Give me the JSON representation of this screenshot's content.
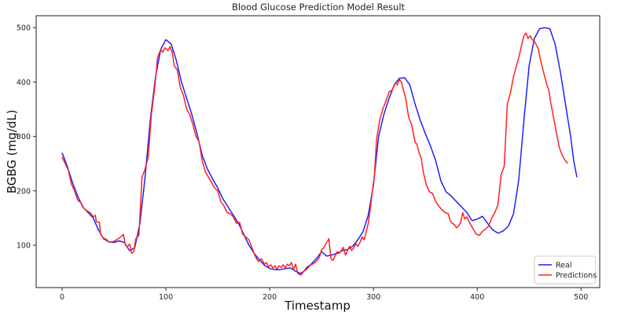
{
  "chart_data": {
    "type": "line",
    "title": "Blood Glucose Prediction Model Result",
    "xlabel": "Timestamp",
    "ylabel": "BGBG (mg/dL)",
    "xlim": [
      -25,
      518
    ],
    "ylim": [
      22,
      522
    ],
    "xticks": [
      0,
      100,
      200,
      300,
      400,
      500
    ],
    "yticks": [
      100,
      200,
      300,
      400,
      500
    ],
    "grid": false,
    "legend_position": "lower right",
    "series": [
      {
        "name": "Real",
        "color": "#1f1fff",
        "points": [
          [
            0,
            270
          ],
          [
            5,
            245
          ],
          [
            10,
            215
          ],
          [
            15,
            190
          ],
          [
            20,
            170
          ],
          [
            25,
            160
          ],
          [
            30,
            150
          ],
          [
            35,
            128
          ],
          [
            40,
            112
          ],
          [
            45,
            106
          ],
          [
            50,
            105
          ],
          [
            55,
            108
          ],
          [
            60,
            105
          ],
          [
            65,
            90
          ],
          [
            70,
            95
          ],
          [
            75,
            140
          ],
          [
            80,
            225
          ],
          [
            85,
            330
          ],
          [
            90,
            410
          ],
          [
            95,
            460
          ],
          [
            100,
            478
          ],
          [
            105,
            470
          ],
          [
            110,
            440
          ],
          [
            115,
            400
          ],
          [
            120,
            370
          ],
          [
            125,
            340
          ],
          [
            130,
            305
          ],
          [
            135,
            265
          ],
          [
            140,
            240
          ],
          [
            145,
            222
          ],
          [
            150,
            205
          ],
          [
            155,
            185
          ],
          [
            160,
            170
          ],
          [
            165,
            155
          ],
          [
            170,
            140
          ],
          [
            175,
            120
          ],
          [
            180,
            100
          ],
          [
            185,
            85
          ],
          [
            190,
            73
          ],
          [
            195,
            63
          ],
          [
            200,
            57
          ],
          [
            205,
            55
          ],
          [
            210,
            55
          ],
          [
            215,
            57
          ],
          [
            220,
            58
          ],
          [
            225,
            52
          ],
          [
            230,
            48
          ],
          [
            235,
            55
          ],
          [
            240,
            65
          ],
          [
            245,
            75
          ],
          [
            250,
            88
          ],
          [
            255,
            80
          ],
          [
            260,
            82
          ],
          [
            265,
            85
          ],
          [
            270,
            90
          ],
          [
            275,
            92
          ],
          [
            280,
            98
          ],
          [
            285,
            110
          ],
          [
            290,
            125
          ],
          [
            295,
            155
          ],
          [
            300,
            210
          ],
          [
            305,
            300
          ],
          [
            310,
            340
          ],
          [
            315,
            370
          ],
          [
            320,
            395
          ],
          [
            325,
            407
          ],
          [
            330,
            408
          ],
          [
            335,
            395
          ],
          [
            340,
            360
          ],
          [
            345,
            330
          ],
          [
            350,
            305
          ],
          [
            355,
            282
          ],
          [
            360,
            255
          ],
          [
            365,
            218
          ],
          [
            370,
            198
          ],
          [
            375,
            190
          ],
          [
            380,
            180
          ],
          [
            385,
            170
          ],
          [
            390,
            160
          ],
          [
            395,
            145
          ],
          [
            400,
            148
          ],
          [
            405,
            153
          ],
          [
            410,
            140
          ],
          [
            415,
            128
          ],
          [
            420,
            122
          ],
          [
            425,
            126
          ],
          [
            430,
            135
          ],
          [
            435,
            158
          ],
          [
            440,
            220
          ],
          [
            445,
            330
          ],
          [
            450,
            430
          ],
          [
            455,
            480
          ],
          [
            460,
            498
          ],
          [
            465,
            500
          ],
          [
            470,
            498
          ],
          [
            475,
            470
          ],
          [
            480,
            420
          ],
          [
            485,
            360
          ],
          [
            490,
            300
          ],
          [
            493,
            255
          ],
          [
            496,
            225
          ]
        ]
      },
      {
        "name": "Predictions",
        "color": "#ff2020",
        "points": [
          [
            0,
            262
          ],
          [
            3,
            250
          ],
          [
            6,
            238
          ],
          [
            9,
            212
          ],
          [
            12,
            200
          ],
          [
            15,
            183
          ],
          [
            18,
            178
          ],
          [
            21,
            168
          ],
          [
            24,
            163
          ],
          [
            27,
            160
          ],
          [
            30,
            152
          ],
          [
            32,
            155
          ],
          [
            33,
            143
          ],
          [
            36,
            142
          ],
          [
            37,
            120
          ],
          [
            40,
            113
          ],
          [
            43,
            110
          ],
          [
            45,
            106
          ],
          [
            48,
            106
          ],
          [
            51,
            108
          ],
          [
            54,
            112
          ],
          [
            57,
            116
          ],
          [
            59,
            120
          ],
          [
            61,
            100
          ],
          [
            63,
            97
          ],
          [
            65,
            102
          ],
          [
            67,
            85
          ],
          [
            69,
            88
          ],
          [
            71,
            112
          ],
          [
            74,
            118
          ],
          [
            77,
            225
          ],
          [
            80,
            240
          ],
          [
            83,
            262
          ],
          [
            86,
            340
          ],
          [
            89,
            385
          ],
          [
            92,
            445
          ],
          [
            95,
            460
          ],
          [
            97,
            455
          ],
          [
            99,
            463
          ],
          [
            102,
            458
          ],
          [
            104,
            465
          ],
          [
            106,
            455
          ],
          [
            108,
            430
          ],
          [
            111,
            422
          ],
          [
            114,
            390
          ],
          [
            117,
            375
          ],
          [
            120,
            350
          ],
          [
            123,
            340
          ],
          [
            126,
            322
          ],
          [
            129,
            300
          ],
          [
            132,
            290
          ],
          [
            135,
            255
          ],
          [
            138,
            235
          ],
          [
            141,
            225
          ],
          [
            144,
            215
          ],
          [
            147,
            205
          ],
          [
            150,
            200
          ],
          [
            153,
            180
          ],
          [
            156,
            172
          ],
          [
            159,
            160
          ],
          [
            162,
            158
          ],
          [
            165,
            152
          ],
          [
            168,
            140
          ],
          [
            171,
            142
          ],
          [
            174,
            120
          ],
          [
            177,
            115
          ],
          [
            180,
            110
          ],
          [
            183,
            95
          ],
          [
            186,
            80
          ],
          [
            189,
            70
          ],
          [
            192,
            75
          ],
          [
            195,
            65
          ],
          [
            197,
            68
          ],
          [
            199,
            60
          ],
          [
            201,
            64
          ],
          [
            203,
            58
          ],
          [
            205,
            62
          ],
          [
            207,
            56
          ],
          [
            209,
            62
          ],
          [
            211,
            59
          ],
          [
            213,
            64
          ],
          [
            215,
            58
          ],
          [
            217,
            65
          ],
          [
            219,
            62
          ],
          [
            221,
            68
          ],
          [
            223,
            55
          ],
          [
            225,
            65
          ],
          [
            227,
            48
          ],
          [
            230,
            45
          ],
          [
            233,
            52
          ],
          [
            236,
            60
          ],
          [
            239,
            63
          ],
          [
            242,
            66
          ],
          [
            245,
            70
          ],
          [
            248,
            78
          ],
          [
            250,
            92
          ],
          [
            252,
            95
          ],
          [
            254,
            102
          ],
          [
            256,
            108
          ],
          [
            257,
            112
          ],
          [
            259,
            75
          ],
          [
            261,
            72
          ],
          [
            263,
            80
          ],
          [
            265,
            88
          ],
          [
            267,
            85
          ],
          [
            269,
            90
          ],
          [
            271,
            96
          ],
          [
            273,
            82
          ],
          [
            275,
            90
          ],
          [
            277,
            98
          ],
          [
            279,
            90
          ],
          [
            281,
            95
          ],
          [
            283,
            103
          ],
          [
            285,
            98
          ],
          [
            287,
            105
          ],
          [
            289,
            115
          ],
          [
            291,
            110
          ],
          [
            293,
            125
          ],
          [
            295,
            140
          ],
          [
            297,
            168
          ],
          [
            299,
            200
          ],
          [
            301,
            230
          ],
          [
            303,
            295
          ],
          [
            306,
            330
          ],
          [
            309,
            350
          ],
          [
            312,
            365
          ],
          [
            315,
            382
          ],
          [
            318,
            385
          ],
          [
            321,
            398
          ],
          [
            323,
            395
          ],
          [
            325,
            405
          ],
          [
            327,
            400
          ],
          [
            329,
            385
          ],
          [
            331,
            370
          ],
          [
            334,
            335
          ],
          [
            337,
            320
          ],
          [
            340,
            290
          ],
          [
            342,
            285
          ],
          [
            344,
            270
          ],
          [
            346,
            260
          ],
          [
            348,
            235
          ],
          [
            351,
            210
          ],
          [
            354,
            198
          ],
          [
            357,
            195
          ],
          [
            360,
            180
          ],
          [
            363,
            172
          ],
          [
            366,
            165
          ],
          [
            369,
            160
          ],
          [
            372,
            158
          ],
          [
            374,
            145
          ],
          [
            376,
            140
          ],
          [
            378,
            138
          ],
          [
            380,
            132
          ],
          [
            382,
            135
          ],
          [
            384,
            142
          ],
          [
            386,
            160
          ],
          [
            388,
            148
          ],
          [
            390,
            152
          ],
          [
            393,
            140
          ],
          [
            396,
            130
          ],
          [
            399,
            120
          ],
          [
            402,
            118
          ],
          [
            405,
            125
          ],
          [
            408,
            130
          ],
          [
            411,
            135
          ],
          [
            414,
            150
          ],
          [
            417,
            160
          ],
          [
            420,
            175
          ],
          [
            423,
            230
          ],
          [
            426,
            245
          ],
          [
            429,
            360
          ],
          [
            432,
            380
          ],
          [
            435,
            410
          ],
          [
            438,
            432
          ],
          [
            440,
            445
          ],
          [
            443,
            470
          ],
          [
            445,
            485
          ],
          [
            447,
            490
          ],
          [
            449,
            480
          ],
          [
            451,
            485
          ],
          [
            453,
            478
          ],
          [
            455,
            475
          ],
          [
            457,
            468
          ],
          [
            459,
            460
          ],
          [
            461,
            440
          ],
          [
            463,
            425
          ],
          [
            465,
            410
          ],
          [
            467,
            395
          ],
          [
            469,
            385
          ],
          [
            471,
            360
          ],
          [
            473,
            340
          ],
          [
            475,
            320
          ],
          [
            477,
            300
          ],
          [
            479,
            280
          ],
          [
            481,
            270
          ],
          [
            484,
            258
          ],
          [
            487,
            250
          ]
        ]
      }
    ]
  }
}
